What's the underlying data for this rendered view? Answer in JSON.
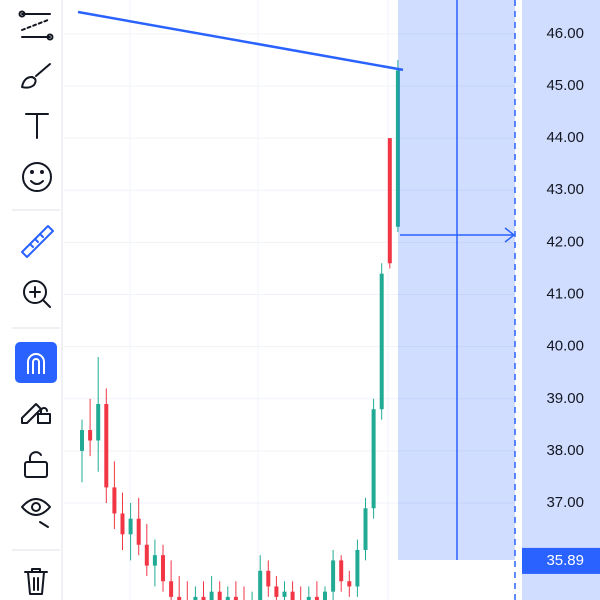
{
  "chart_data": {
    "type": "candlestick",
    "open": [
      38.0,
      38.4,
      38.2,
      38.9,
      37.3,
      36.8,
      36.4,
      36.7,
      36.2,
      35.8,
      36.0,
      35.5,
      35.2,
      35.1,
      35.0,
      35.2,
      35.1,
      35.3,
      35.0,
      35.2,
      35.1,
      35.0,
      35.0,
      35.7,
      35.4,
      35.2,
      35.3,
      35.1,
      35.0,
      35.2,
      35.1,
      35.3,
      35.9,
      35.5,
      35.4,
      36.1,
      36.9,
      38.8,
      44.0,
      42.3
    ],
    "high": [
      38.6,
      39.0,
      39.8,
      39.2,
      37.8,
      37.2,
      37.0,
      37.1,
      36.6,
      36.3,
      36.2,
      35.9,
      35.6,
      35.5,
      35.4,
      35.5,
      35.6,
      35.5,
      35.4,
      35.5,
      35.4,
      35.3,
      36.0,
      35.9,
      35.6,
      35.5,
      35.5,
      35.4,
      35.4,
      35.5,
      35.4,
      36.1,
      36.0,
      35.7,
      36.3,
      37.1,
      39.0,
      41.6,
      44.0,
      45.5
    ],
    "low": [
      37.4,
      37.9,
      37.6,
      37.0,
      36.5,
      36.1,
      35.9,
      36.0,
      35.6,
      35.4,
      35.3,
      35.0,
      34.9,
      34.8,
      34.8,
      34.9,
      34.9,
      34.9,
      34.8,
      34.9,
      34.8,
      34.8,
      34.9,
      35.2,
      35.0,
      34.9,
      34.9,
      34.8,
      34.8,
      34.9,
      34.9,
      35.1,
      35.3,
      35.2,
      35.2,
      35.9,
      36.7,
      38.6,
      41.5,
      42.2
    ],
    "close": [
      38.4,
      38.2,
      38.9,
      37.3,
      36.8,
      36.4,
      36.7,
      36.2,
      35.8,
      36.0,
      35.5,
      35.2,
      35.1,
      35.0,
      35.2,
      35.1,
      35.3,
      35.0,
      35.2,
      35.1,
      35.0,
      35.0,
      35.7,
      35.4,
      35.2,
      35.3,
      35.1,
      35.0,
      35.2,
      35.1,
      35.3,
      35.9,
      35.5,
      35.4,
      36.1,
      36.9,
      38.8,
      41.4,
      41.6,
      45.3
    ],
    "up_color": "#22ab94",
    "down_color": "#f23645",
    "ylim": [
      35.14,
      46.65
    ],
    "yticks": [
      {
        "value": 46,
        "label": "46.00"
      },
      {
        "value": 45,
        "label": "45.00"
      },
      {
        "value": 44,
        "label": "44.00"
      },
      {
        "value": 43,
        "label": "43.00"
      },
      {
        "value": 42,
        "label": "42.00"
      },
      {
        "value": 41,
        "label": "41.00"
      },
      {
        "value": 40,
        "label": "40.00"
      },
      {
        "value": 39,
        "label": "39.00"
      },
      {
        "value": 38,
        "label": "38.00"
      },
      {
        "value": 37,
        "label": "37.00"
      }
    ],
    "price_label": 35.89,
    "trend_line": [
      46.42,
      45.31
    ],
    "grid": true
  }
}
